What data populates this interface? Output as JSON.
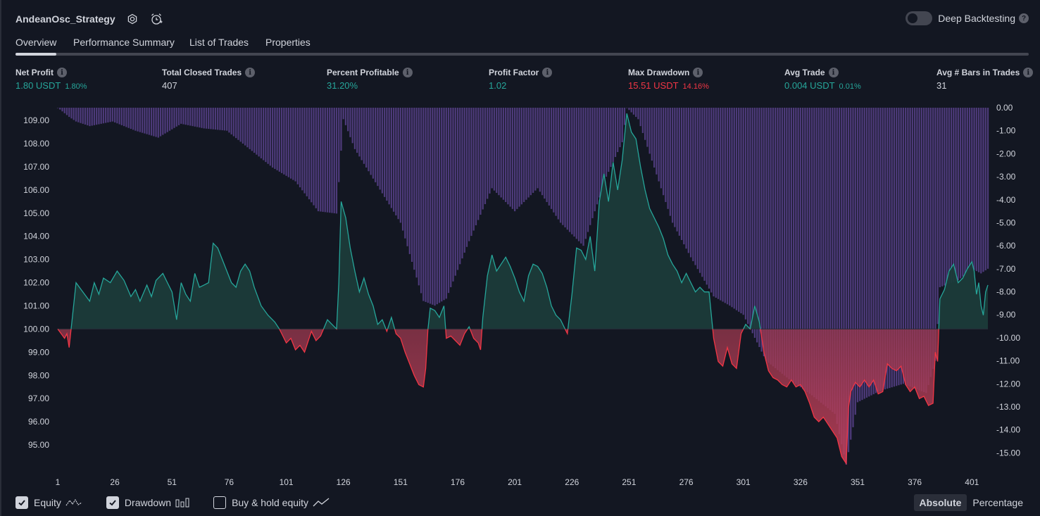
{
  "header": {
    "title": "AndeanOsc_Strategy",
    "deep_backtesting_label": "Deep Backtesting"
  },
  "tabs": [
    {
      "label": "Overview",
      "active": true
    },
    {
      "label": "Performance Summary",
      "active": false
    },
    {
      "label": "List of Trades",
      "active": false
    },
    {
      "label": "Properties",
      "active": false
    }
  ],
  "stats": [
    {
      "label": "Net Profit",
      "value": "1.80 USDT",
      "sub": "1.80%",
      "color": "green"
    },
    {
      "label": "Total Closed Trades",
      "value": "407",
      "sub": "",
      "color": "white"
    },
    {
      "label": "Percent Profitable",
      "value": "31.20%",
      "sub": "",
      "color": "green"
    },
    {
      "label": "Profit Factor",
      "value": "1.02",
      "sub": "",
      "color": "green"
    },
    {
      "label": "Max Drawdown",
      "value": "15.51 USDT",
      "sub": "14.16%",
      "color": "red"
    },
    {
      "label": "Avg Trade",
      "value": "0.004 USDT",
      "sub": "0.01%",
      "color": "green"
    },
    {
      "label": "Avg # Bars in Trades",
      "value": "31",
      "sub": "",
      "color": "white"
    }
  ],
  "chart_data": {
    "type": "area",
    "baseline": 100.0,
    "left_axis": {
      "ticks": [
        "109.00",
        "108.00",
        "107.00",
        "106.00",
        "105.00",
        "104.00",
        "103.00",
        "102.00",
        "101.00",
        "100.00",
        "99.00",
        "98.00",
        "97.00",
        "96.00",
        "95.00"
      ],
      "range": [
        94.15,
        109.55
      ]
    },
    "right_axis": {
      "ticks": [
        "0.00",
        "-1.00",
        "-2.00",
        "-3.00",
        "-4.00",
        "-5.00",
        "-6.00",
        "-7.00",
        "-8.00",
        "-9.00",
        "-10.00",
        "-11.00",
        "-12.00",
        "-13.00",
        "-14.00",
        "-15.00"
      ],
      "range": [
        -15.51,
        0
      ]
    },
    "x_ticks": [
      "1",
      "26",
      "51",
      "76",
      "101",
      "126",
      "151",
      "176",
      "201",
      "226",
      "251",
      "276",
      "301",
      "326",
      "351",
      "376",
      "401"
    ],
    "x_range": [
      1,
      408
    ],
    "series": [
      {
        "name": "Equity",
        "colors": {
          "above": "#26a69a",
          "below": "#f23645"
        },
        "points": [
          [
            1,
            100.0
          ],
          [
            4,
            99.6
          ],
          [
            5,
            99.8
          ],
          [
            6,
            99.2
          ],
          [
            9,
            102.0
          ],
          [
            12,
            101.6
          ],
          [
            15,
            101.2
          ],
          [
            17,
            102.0
          ],
          [
            19,
            101.5
          ],
          [
            21,
            102.2
          ],
          [
            24,
            102.0
          ],
          [
            27,
            102.5
          ],
          [
            30,
            102.1
          ],
          [
            33,
            101.4
          ],
          [
            35,
            101.7
          ],
          [
            37,
            101.2
          ],
          [
            40,
            101.9
          ],
          [
            42,
            101.4
          ],
          [
            44,
            102.1
          ],
          [
            47,
            102.4
          ],
          [
            49,
            102.0
          ],
          [
            51,
            101.6
          ],
          [
            53,
            100.4
          ],
          [
            55,
            102.0
          ],
          [
            57,
            101.5
          ],
          [
            59,
            101.2
          ],
          [
            61,
            102.4
          ],
          [
            63,
            101.8
          ],
          [
            65,
            101.9
          ],
          [
            67,
            102.0
          ],
          [
            69,
            103.7
          ],
          [
            71,
            103.5
          ],
          [
            73,
            103.0
          ],
          [
            75,
            102.5
          ],
          [
            77,
            102.0
          ],
          [
            79,
            101.8
          ],
          [
            81,
            102.5
          ],
          [
            83,
            102.8
          ],
          [
            85,
            102.5
          ],
          [
            87,
            101.8
          ],
          [
            90,
            101.0
          ],
          [
            93,
            100.6
          ],
          [
            96,
            100.3
          ],
          [
            98,
            100.0
          ],
          [
            99,
            99.8
          ],
          [
            101,
            99.4
          ],
          [
            103,
            99.6
          ],
          [
            105,
            99.1
          ],
          [
            107,
            99.3
          ],
          [
            109,
            99.0
          ],
          [
            112,
            99.9
          ],
          [
            114,
            99.5
          ],
          [
            116,
            99.7
          ],
          [
            119,
            100.4
          ],
          [
            121,
            100.2
          ],
          [
            123,
            100.0
          ],
          [
            124,
            102.0
          ],
          [
            125,
            105.5
          ],
          [
            127,
            104.8
          ],
          [
            129,
            103.5
          ],
          [
            131,
            102.5
          ],
          [
            133,
            101.6
          ],
          [
            135,
            102.2
          ],
          [
            137,
            101.5
          ],
          [
            139,
            101.0
          ],
          [
            141,
            100.2
          ],
          [
            143,
            100.4
          ],
          [
            145,
            99.9
          ],
          [
            147,
            100.5
          ],
          [
            149,
            99.8
          ],
          [
            151,
            99.6
          ],
          [
            153,
            99.0
          ],
          [
            155,
            98.5
          ],
          [
            157,
            98.0
          ],
          [
            159,
            97.6
          ],
          [
            161,
            97.5
          ],
          [
            162,
            98.3
          ],
          [
            163,
            100.0
          ],
          [
            164,
            100.9
          ],
          [
            166,
            100.8
          ],
          [
            168,
            100.5
          ],
          [
            170,
            101.0
          ],
          [
            171,
            99.6
          ],
          [
            173,
            99.7
          ],
          [
            175,
            99.5
          ],
          [
            177,
            99.3
          ],
          [
            179,
            99.8
          ],
          [
            181,
            100.1
          ],
          [
            183,
            99.6
          ],
          [
            185,
            99.4
          ],
          [
            186,
            99.1
          ],
          [
            187,
            100.5
          ],
          [
            189,
            102.3
          ],
          [
            191,
            103.2
          ],
          [
            193,
            102.5
          ],
          [
            195,
            102.8
          ],
          [
            197,
            103.1
          ],
          [
            199,
            102.7
          ],
          [
            201,
            102.2
          ],
          [
            203,
            101.6
          ],
          [
            205,
            101.2
          ],
          [
            207,
            102.3
          ],
          [
            209,
            102.8
          ],
          [
            211,
            102.7
          ],
          [
            213,
            102.4
          ],
          [
            215,
            101.8
          ],
          [
            217,
            101.0
          ],
          [
            219,
            100.6
          ],
          [
            221,
            100.4
          ],
          [
            223,
            100.0
          ],
          [
            224,
            99.8
          ],
          [
            226,
            101.5
          ],
          [
            228,
            103.5
          ],
          [
            230,
            103.4
          ],
          [
            232,
            103.0
          ],
          [
            234,
            104.0
          ],
          [
            236,
            102.5
          ],
          [
            238,
            105.5
          ],
          [
            240,
            106.7
          ],
          [
            242,
            105.5
          ],
          [
            244,
            107.2
          ],
          [
            246,
            106.0
          ],
          [
            248,
            107.3
          ],
          [
            250,
            109.3
          ],
          [
            252,
            108.5
          ],
          [
            254,
            108.2
          ],
          [
            256,
            107.0
          ],
          [
            258,
            106.0
          ],
          [
            260,
            105.2
          ],
          [
            262,
            104.8
          ],
          [
            264,
            104.4
          ],
          [
            266,
            103.9
          ],
          [
            268,
            103.2
          ],
          [
            270,
            102.8
          ],
          [
            272,
            102.5
          ],
          [
            274,
            102.0
          ],
          [
            276,
            102.4
          ],
          [
            278,
            102.0
          ],
          [
            280,
            101.6
          ],
          [
            282,
            101.8
          ],
          [
            284,
            101.6
          ],
          [
            286,
            101.6
          ],
          [
            288,
            99.6
          ],
          [
            290,
            98.6
          ],
          [
            292,
            98.4
          ],
          [
            294,
            99.2
          ],
          [
            296,
            98.5
          ],
          [
            298,
            98.3
          ],
          [
            300,
            99.8
          ],
          [
            302,
            100.2
          ],
          [
            304,
            100.0
          ],
          [
            306,
            101.0
          ],
          [
            308,
            100.3
          ],
          [
            310,
            99.0
          ],
          [
            312,
            98.2
          ],
          [
            314,
            97.9
          ],
          [
            316,
            97.8
          ],
          [
            318,
            97.6
          ],
          [
            320,
            97.5
          ],
          [
            322,
            97.8
          ],
          [
            324,
            97.5
          ],
          [
            326,
            97.6
          ],
          [
            328,
            97.3
          ],
          [
            330,
            96.8
          ],
          [
            332,
            96.2
          ],
          [
            334,
            96.0
          ],
          [
            336,
            96.2
          ],
          [
            338,
            95.9
          ],
          [
            340,
            95.6
          ],
          [
            342,
            95.3
          ],
          [
            344,
            94.5
          ],
          [
            346,
            94.2
          ],
          [
            347,
            96.6
          ],
          [
            348,
            97.3
          ],
          [
            350,
            97.7
          ],
          [
            352,
            97.5
          ],
          [
            354,
            97.8
          ],
          [
            356,
            97.5
          ],
          [
            358,
            97.8
          ],
          [
            360,
            97.2
          ],
          [
            362,
            97.3
          ],
          [
            364,
            98.5
          ],
          [
            366,
            98.3
          ],
          [
            368,
            98.2
          ],
          [
            370,
            98.4
          ],
          [
            372,
            97.6
          ],
          [
            374,
            97.3
          ],
          [
            376,
            97.5
          ],
          [
            378,
            97.0
          ],
          [
            380,
            97.1
          ],
          [
            382,
            96.7
          ],
          [
            384,
            96.8
          ],
          [
            385,
            99.0
          ],
          [
            386,
            98.6
          ],
          [
            387,
            101.3
          ],
          [
            389,
            101.7
          ],
          [
            391,
            102.5
          ],
          [
            393,
            102.8
          ],
          [
            395,
            102.0
          ],
          [
            397,
            102.2
          ],
          [
            399,
            102.6
          ],
          [
            401,
            102.9
          ],
          [
            402,
            102.5
          ],
          [
            403,
            101.5
          ],
          [
            404,
            102.0
          ],
          [
            405,
            101.0
          ],
          [
            406,
            100.6
          ],
          [
            407,
            101.6
          ],
          [
            408,
            101.9
          ]
        ]
      },
      {
        "name": "Drawdown",
        "color": "#7e57c2",
        "points": [
          [
            1,
            0
          ],
          [
            6,
            -0.4
          ],
          [
            9,
            -0.6
          ],
          [
            15,
            -0.8
          ],
          [
            25,
            -0.6
          ],
          [
            35,
            -1.0
          ],
          [
            45,
            -1.3
          ],
          [
            55,
            -0.7
          ],
          [
            65,
            -0.9
          ],
          [
            75,
            -1.0
          ],
          [
            85,
            -1.8
          ],
          [
            95,
            -2.6
          ],
          [
            105,
            -3.2
          ],
          [
            115,
            -4.5
          ],
          [
            123,
            -4.6
          ],
          [
            126,
            -0.5
          ],
          [
            131,
            -1.8
          ],
          [
            141,
            -3.4
          ],
          [
            151,
            -5.0
          ],
          [
            161,
            -8.4
          ],
          [
            166,
            -8.6
          ],
          [
            171,
            -8.3
          ],
          [
            181,
            -5.8
          ],
          [
            191,
            -3.5
          ],
          [
            201,
            -4.5
          ],
          [
            211,
            -3.5
          ],
          [
            221,
            -5.0
          ],
          [
            231,
            -6.0
          ],
          [
            241,
            -3.0
          ],
          [
            248,
            -1.5
          ],
          [
            250,
            0
          ],
          [
            255,
            -0.5
          ],
          [
            260,
            -2.0
          ],
          [
            270,
            -5.0
          ],
          [
            278,
            -6.5
          ],
          [
            288,
            -8.2
          ],
          [
            295,
            -8.6
          ],
          [
            301,
            -9.0
          ],
          [
            311,
            -11.0
          ],
          [
            321,
            -11.8
          ],
          [
            331,
            -12.5
          ],
          [
            341,
            -13.3
          ],
          [
            346,
            -15.51
          ],
          [
            351,
            -12.8
          ],
          [
            361,
            -12.3
          ],
          [
            371,
            -12.0
          ],
          [
            381,
            -12.4
          ],
          [
            385,
            -11.0
          ],
          [
            387,
            -7.8
          ],
          [
            395,
            -7.5
          ],
          [
            401,
            -7.0
          ],
          [
            405,
            -7.2
          ],
          [
            408,
            -7.0
          ]
        ]
      }
    ]
  },
  "footer": {
    "legend": [
      {
        "label": "Equity",
        "checked": true,
        "icon": "equity-line-icon"
      },
      {
        "label": "Drawdown",
        "checked": true,
        "icon": "drawdown-bars-icon"
      },
      {
        "label": "Buy & hold equity",
        "checked": false,
        "icon": "buyhold-line-icon"
      }
    ],
    "mode": {
      "absolute": "Absolute",
      "percentage": "Percentage",
      "selected": "Absolute"
    }
  }
}
